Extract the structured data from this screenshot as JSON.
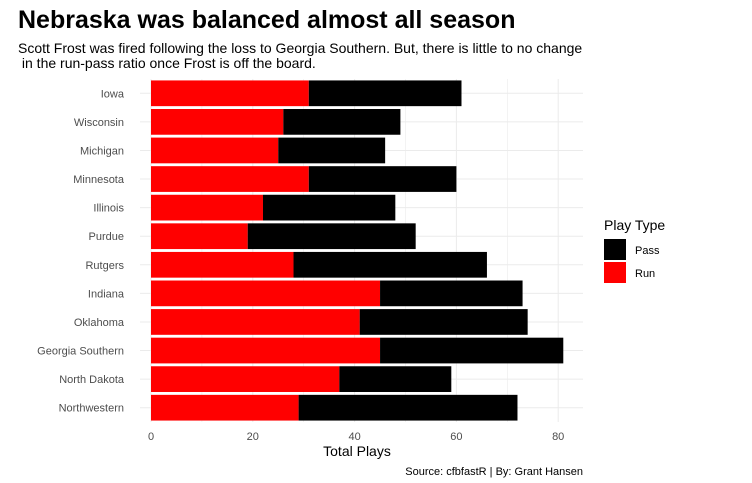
{
  "title": "Nebraska was balanced almost all season",
  "subtitle": "Scott Frost was fired following the loss to Georgia Southern. But, there is little to no change\n in the run-pass ratio once Frost is off the board.",
  "caption": "Source: cfbfastR | By: Grant Hansen",
  "chart_data": {
    "type": "bar",
    "orientation": "horizontal",
    "stacked": true,
    "categories": [
      "Iowa",
      "Wisconsin",
      "Michigan",
      "Minnesota",
      "Illinois",
      "Purdue",
      "Rutgers",
      "Indiana",
      "Oklahoma",
      "Georgia Southern",
      "North Dakota",
      "Northwestern"
    ],
    "series": [
      {
        "name": "Run",
        "color": "#ff0000",
        "values": [
          31,
          26,
          25,
          31,
          22,
          19,
          28,
          45,
          41,
          45,
          37,
          29
        ]
      },
      {
        "name": "Pass",
        "color": "#000000",
        "values": [
          30,
          23,
          21,
          29,
          26,
          33,
          38,
          28,
          33,
          36,
          22,
          43
        ]
      }
    ],
    "xlabel": "Total Plays",
    "ylabel": "",
    "xlim": [
      0,
      85
    ],
    "xticks": [
      "0",
      "20",
      "40",
      "60",
      "80"
    ],
    "grid": true,
    "legend": {
      "title": "Play Type",
      "entries": [
        "Pass",
        "Run"
      ],
      "placement": "right"
    }
  }
}
